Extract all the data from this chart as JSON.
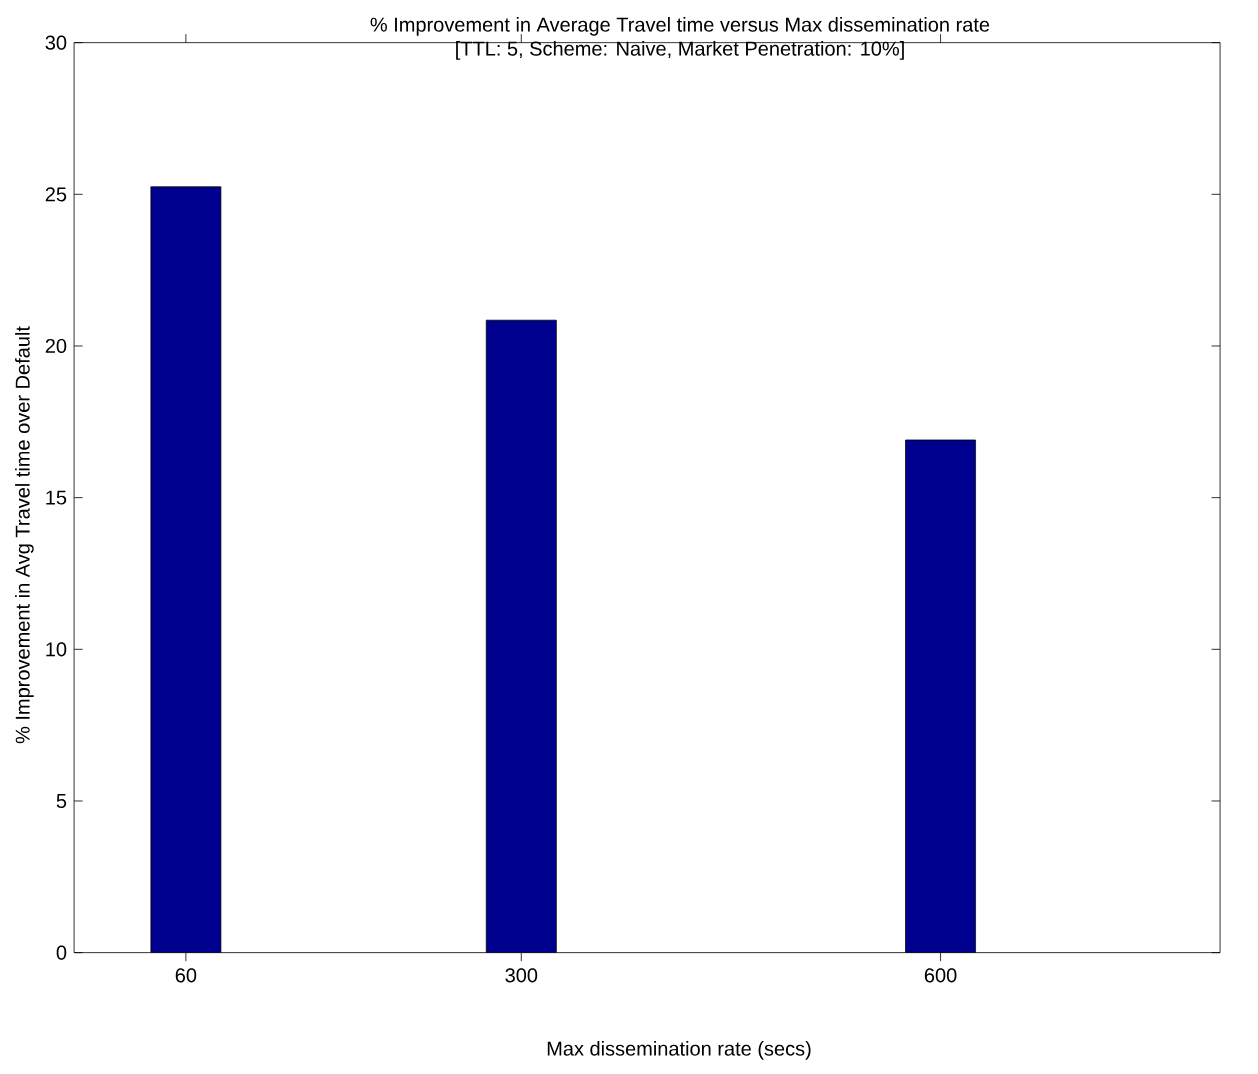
{
  "chart_data": {
    "type": "bar",
    "title": "% Improvement in Average Travel time versus Max dissemination rate",
    "subtitle": "[TTL: 5, Scheme: Naive, Market Penetration: 10%]",
    "xlabel": "Max dissemination rate (secs)",
    "ylabel": "% Improvement in Avg Travel time over Default",
    "x": [
      60,
      300,
      600
    ],
    "values": [
      25.25,
      20.85,
      16.9
    ],
    "color": "#00008f",
    "xlim": [
      -20,
      800
    ],
    "xticks": [
      60,
      300,
      600
    ],
    "ylim": [
      0,
      30
    ],
    "yticks": [
      0,
      5,
      10,
      15,
      20,
      25,
      30
    ],
    "grid": false
  }
}
